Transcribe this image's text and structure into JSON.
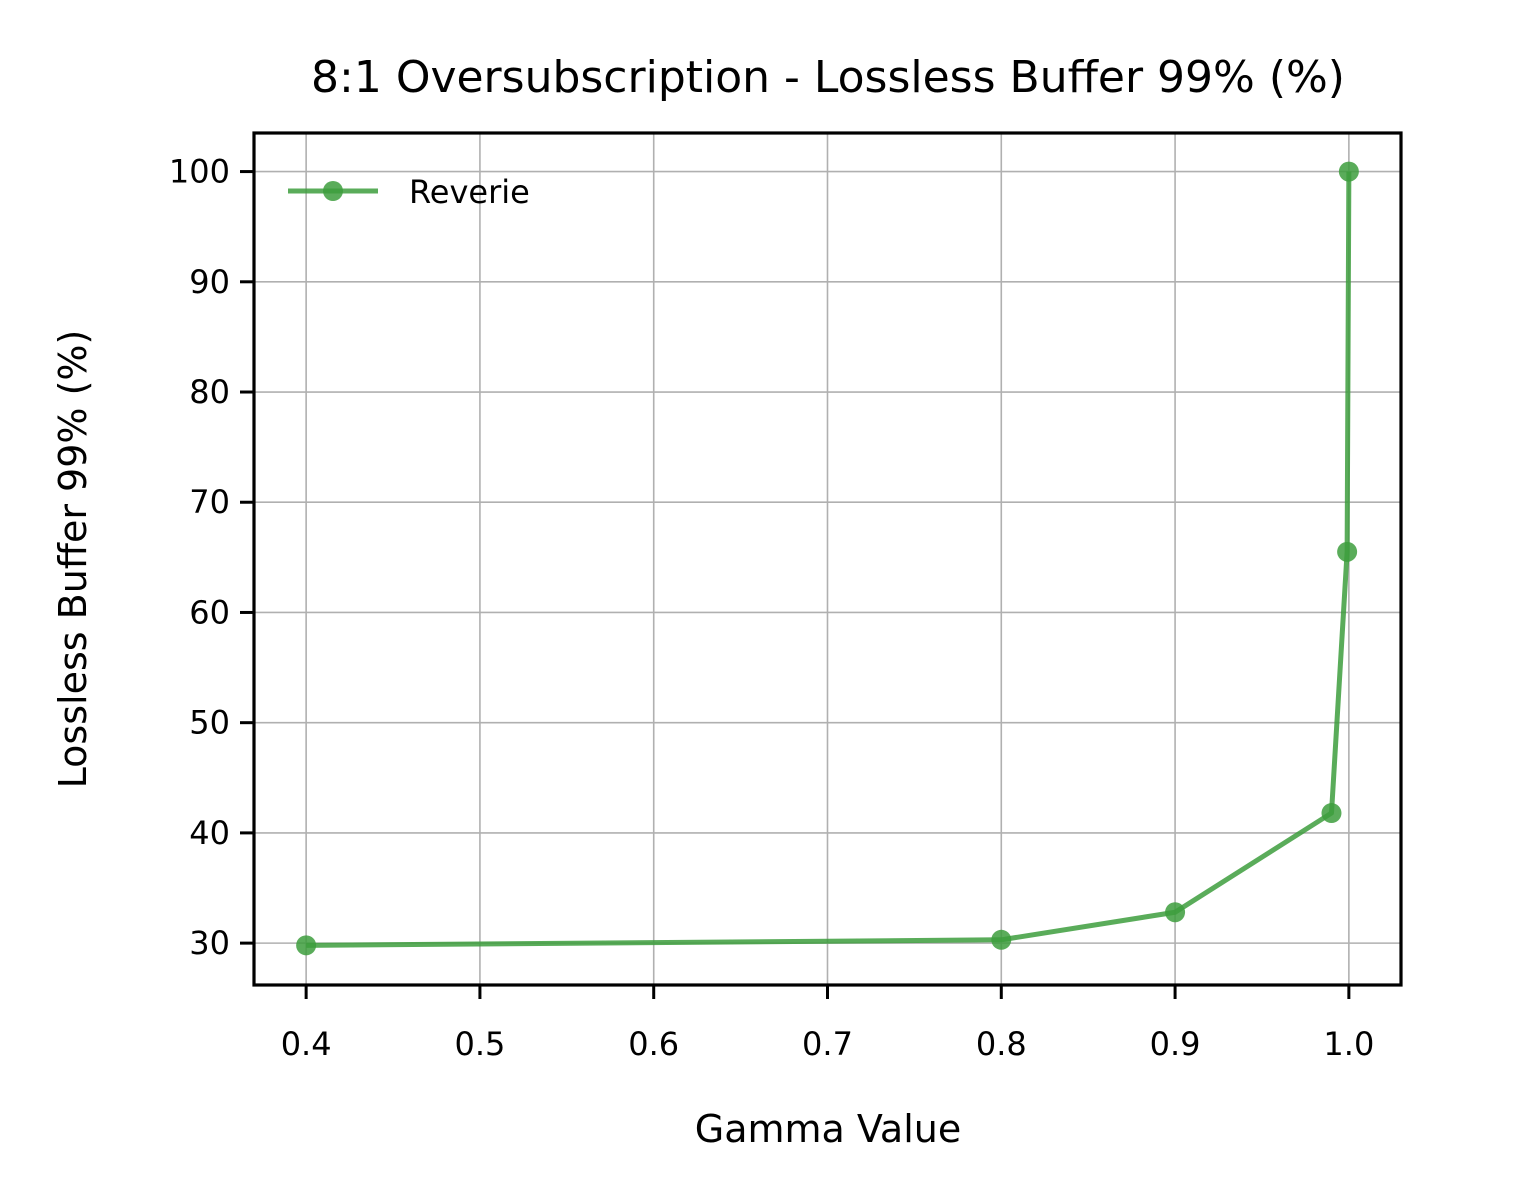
{
  "chart_data": {
    "type": "line",
    "title": "8:1 Oversubscription - Lossless Buffer 99% (%)",
    "xlabel": "Gamma Value",
    "ylabel": "Lossless Buffer 99% (%)",
    "xlim": [
      0.37,
      1.03
    ],
    "ylim": [
      26.2,
      103.5
    ],
    "xticks": [
      0.4,
      0.5,
      0.6,
      0.7,
      0.8,
      0.9,
      1.0
    ],
    "xtick_labels": [
      "0.4",
      "0.5",
      "0.6",
      "0.7",
      "0.8",
      "0.9",
      "1.0"
    ],
    "yticks": [
      30,
      40,
      50,
      60,
      70,
      80,
      90,
      100
    ],
    "ytick_labels": [
      "30",
      "40",
      "50",
      "60",
      "70",
      "80",
      "90",
      "100"
    ],
    "grid": true,
    "legend_position": "top-left",
    "series": [
      {
        "name": "Reverie",
        "color": "#3d9e3d",
        "marker": "circle",
        "x": [
          0.4,
          0.8,
          0.9,
          0.99,
          0.999,
          1.0
        ],
        "y": [
          29.8,
          30.3,
          32.8,
          41.8,
          65.5,
          100.0
        ]
      }
    ]
  }
}
